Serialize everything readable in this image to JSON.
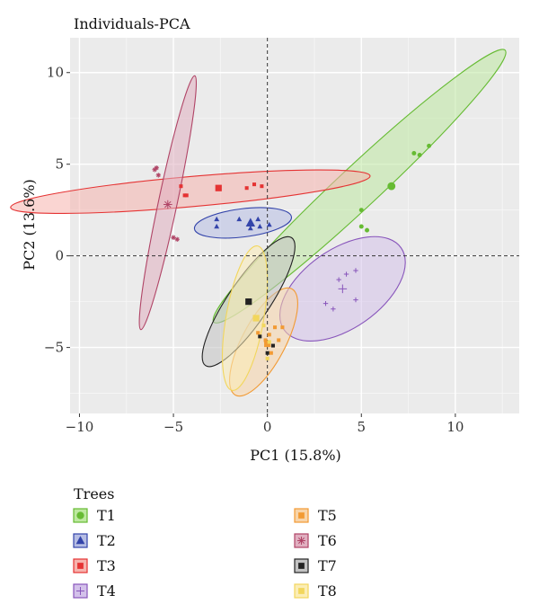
{
  "chart_data": {
    "type": "scatter",
    "title": "Individuals-PCA",
    "xlabel": "PC1 (15.8%)",
    "ylabel": "PC2 (13.6%)",
    "xlim": [
      -10.5,
      13.4
    ],
    "ylim": [
      -8.6,
      11.9
    ],
    "xticks": [
      -10,
      -5,
      0,
      5,
      10
    ],
    "yticks": [
      -5,
      0,
      5,
      10
    ],
    "grid": true,
    "reference_lines": {
      "x": 0,
      "y": 0,
      "style": "dashed"
    },
    "legend": {
      "title": "Trees",
      "placement": "bottom"
    },
    "series": [
      {
        "name": "T1",
        "color": "#66bb33",
        "fill": "#bde8a0",
        "marker": "circle",
        "points": [
          [
            5.0,
            2.5
          ],
          [
            5.0,
            1.6
          ],
          [
            5.3,
            1.4
          ],
          [
            7.8,
            5.6
          ],
          [
            8.1,
            5.5
          ],
          [
            8.6,
            6.0
          ]
        ],
        "centroid": [
          6.6,
          3.8
        ],
        "ellipse": {
          "cx": 4.9,
          "cy": 3.8,
          "rx": 10.6,
          "ry": 1.1,
          "angle": 43
        }
      },
      {
        "name": "T2",
        "color": "#3344aa",
        "fill": "#b6bde4",
        "marker": "triangle",
        "points": [
          [
            -2.7,
            2.0
          ],
          [
            -2.7,
            1.6
          ],
          [
            -1.5,
            2.0
          ],
          [
            -0.5,
            2.0
          ],
          [
            -0.4,
            1.6
          ],
          [
            0.1,
            1.7
          ],
          [
            -0.9,
            1.5
          ]
        ],
        "centroid": [
          -0.9,
          1.8
        ],
        "ellipse": {
          "cx": -1.3,
          "cy": 1.8,
          "rx": 2.6,
          "ry": 0.75,
          "angle": 7
        }
      },
      {
        "name": "T3",
        "color": "#e53333",
        "fill": "#f6b3ad",
        "marker": "square",
        "points": [
          [
            -4.6,
            3.8
          ],
          [
            -4.4,
            3.3
          ],
          [
            -4.3,
            3.3
          ],
          [
            -1.1,
            3.7
          ],
          [
            -0.7,
            3.9
          ],
          [
            -0.3,
            3.8
          ]
        ],
        "centroid": [
          -2.6,
          3.7
        ],
        "ellipse": {
          "cx": -4.1,
          "cy": 3.5,
          "rx": 9.6,
          "ry": 0.8,
          "angle": 5
        }
      },
      {
        "name": "T4",
        "color": "#8855bb",
        "fill": "#d3c1ea",
        "marker": "plus",
        "points": [
          [
            3.1,
            -2.6
          ],
          [
            3.5,
            -2.9
          ],
          [
            3.8,
            -1.3
          ],
          [
            4.2,
            -1.0
          ],
          [
            4.7,
            -0.8
          ],
          [
            4.7,
            -2.4
          ]
        ],
        "centroid": [
          4.0,
          -1.8
        ],
        "ellipse": {
          "cx": 4.0,
          "cy": -1.8,
          "rx": 3.8,
          "ry": 2.1,
          "angle": 35
        }
      },
      {
        "name": "T5",
        "color": "#f29a33",
        "fill": "#f8d4a8",
        "marker": "square",
        "points": [
          [
            -0.5,
            -4.2
          ],
          [
            -0.1,
            -4.6
          ],
          [
            0.1,
            -4.3
          ],
          [
            0.2,
            -5.3
          ],
          [
            0.4,
            -3.9
          ],
          [
            0.6,
            -4.6
          ],
          [
            0.8,
            -3.9
          ]
        ],
        "centroid": [
          0.0,
          -4.8
        ],
        "ellipse": {
          "cx": -0.2,
          "cy": -4.7,
          "rx": 3.2,
          "ry": 1.15,
          "angle": 62
        }
      },
      {
        "name": "T6",
        "color": "#b04466",
        "fill": "#e0afc0",
        "marker": "asterisk",
        "points": [
          [
            -6.0,
            4.7
          ],
          [
            -5.9,
            4.8
          ],
          [
            -5.8,
            4.4
          ],
          [
            -5.0,
            1.0
          ],
          [
            -4.8,
            0.9
          ]
        ],
        "centroid": [
          -5.3,
          2.8
        ],
        "ellipse": {
          "cx": -5.3,
          "cy": 2.9,
          "rx": 6.9,
          "ry": 0.5,
          "angle": 78
        }
      },
      {
        "name": "T7",
        "color": "#222222",
        "fill": "#c2c2c2",
        "marker": "square",
        "points": [
          [
            -0.4,
            -4.4
          ],
          [
            0.3,
            -4.9
          ],
          [
            0.0,
            -5.3
          ]
        ],
        "centroid": [
          -1.0,
          -2.5
        ],
        "ellipse": {
          "cx": -1.0,
          "cy": -2.5,
          "rx": 4.1,
          "ry": 1.1,
          "angle": 56
        }
      },
      {
        "name": "T8",
        "color": "#f2d65c",
        "fill": "#fbedb6",
        "marker": "square",
        "points": [
          [
            -0.2,
            -3.8
          ],
          [
            0.1,
            -4.7
          ],
          [
            0.0,
            -5.6
          ]
        ],
        "centroid": [
          -0.6,
          -3.4
        ],
        "ellipse": {
          "cx": -1.2,
          "cy": -3.4,
          "rx": 3.9,
          "ry": 1.0,
          "angle": 80
        }
      }
    ]
  }
}
